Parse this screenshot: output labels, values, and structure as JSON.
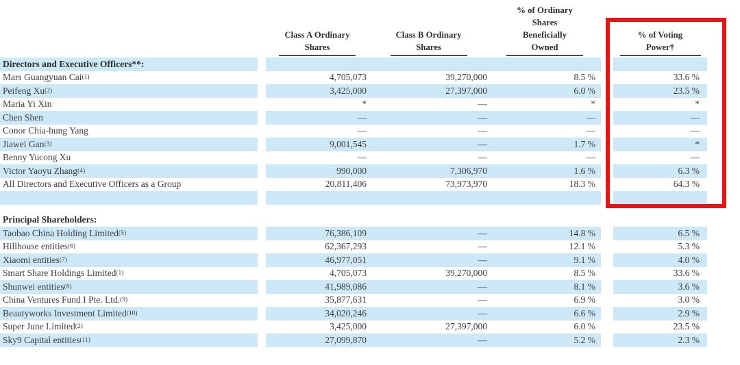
{
  "table": {
    "headers": {
      "class_a": [
        "Class A Ordinary",
        "Shares"
      ],
      "class_b": [
        "Class B Ordinary",
        "Shares"
      ],
      "pct_owned": [
        "% of Ordinary",
        "Shares",
        "Beneficially",
        "Owned"
      ],
      "voting": [
        "% of Voting",
        "Power†"
      ]
    },
    "rows": [
      {
        "type": "section",
        "label": "Directors and Executive Officers**:",
        "sup": "",
        "a": "",
        "b": "",
        "pct": "",
        "vote": "",
        "shaded": true
      },
      {
        "type": "data",
        "label": "Mars Guangyuan Cai",
        "sup": "(1)",
        "a": "4,705,073",
        "b": "39,270,000",
        "pct": "8.5 %",
        "vote": "33.6 %",
        "shaded": false
      },
      {
        "type": "data",
        "label": "Peifeng Xu",
        "sup": "(2)",
        "a": "3,425,000",
        "b": "27,397,000",
        "pct": "6.0 %",
        "vote": "23.5 %",
        "shaded": true
      },
      {
        "type": "data",
        "label": "Maria Yi Xin",
        "sup": "",
        "a": "*",
        "b": "—",
        "pct": "*",
        "vote": "*",
        "shaded": false
      },
      {
        "type": "data",
        "label": "Chen Shen",
        "sup": "",
        "a": "—",
        "b": "—",
        "pct": "—",
        "vote": "—",
        "shaded": true
      },
      {
        "type": "data",
        "label": "Conor Chia-hung Yang",
        "sup": "",
        "a": "—",
        "b": "—",
        "pct": "—",
        "vote": "—",
        "shaded": false
      },
      {
        "type": "data",
        "label": "Jiawei Gan",
        "sup": "(3)",
        "a": "9,001,545",
        "b": "—",
        "pct": "1.7 %",
        "vote": "*",
        "shaded": true
      },
      {
        "type": "data",
        "label": "Benny Yucong Xu",
        "sup": "",
        "a": "—",
        "b": "—",
        "pct": "—",
        "vote": "—",
        "shaded": false
      },
      {
        "type": "data",
        "label": "Victor Yaoyu Zhang",
        "sup": "(4)",
        "a": "990,000",
        "b": "7,306,970",
        "pct": "1.6 %",
        "vote": "6.3 %",
        "shaded": true
      },
      {
        "type": "data",
        "label": "All Directors and Executive Officers as a Group",
        "sup": "",
        "a": "20,811,406",
        "b": "73,973,970",
        "pct": "18.3 %",
        "vote": "64.3 %",
        "shaded": false
      },
      {
        "type": "blank",
        "label": "",
        "sup": "",
        "a": "",
        "b": "",
        "pct": "",
        "vote": "",
        "shaded": true
      },
      {
        "type": "spacer"
      },
      {
        "type": "section",
        "label": "Principal Shareholders:",
        "sup": "",
        "a": "",
        "b": "",
        "pct": "",
        "vote": "",
        "shaded": false
      },
      {
        "type": "data",
        "label": "Taobao China Holding Limited",
        "sup": "(5)",
        "a": "76,386,109",
        "b": "—",
        "pct": "14.8 %",
        "vote": "6.5 %",
        "shaded": true
      },
      {
        "type": "data",
        "label": "Hillhouse entities",
        "sup": "(6)",
        "a": "62,367,293",
        "b": "—",
        "pct": "12.1 %",
        "vote": "5.3 %",
        "shaded": false
      },
      {
        "type": "data",
        "label": "Xiaomi entities",
        "sup": "(7)",
        "a": "46,977,051",
        "b": "—",
        "pct": "9.1 %",
        "vote": "4.0 %",
        "shaded": true
      },
      {
        "type": "data",
        "label": "Smart Share Holdings Limited",
        "sup": "(1)",
        "a": "4,705,073",
        "b": "39,270,000",
        "pct": "8.5 %",
        "vote": "33.6 %",
        "shaded": false
      },
      {
        "type": "data",
        "label": "Shunwei entities",
        "sup": "(8)",
        "a": "41,989,086",
        "b": "—",
        "pct": "8.1 %",
        "vote": "3.6 %",
        "shaded": true
      },
      {
        "type": "data",
        "label": "China Ventures Fund I Pte. Ltd.",
        "sup": "(9)",
        "a": "35,877,631",
        "b": "—",
        "pct": "6.9 %",
        "vote": "3.0 %",
        "shaded": false
      },
      {
        "type": "data",
        "label": "Beautyworks Investment Limited",
        "sup": "(10)",
        "a": "34,020,246",
        "b": "—",
        "pct": "6.6 %",
        "vote": "2.9 %",
        "shaded": true
      },
      {
        "type": "data",
        "label": "Super June Limited",
        "sup": "(2)",
        "a": "3,425,000",
        "b": "27,397,000",
        "pct": "6.0 %",
        "vote": "23.5 %",
        "shaded": false
      },
      {
        "type": "data",
        "label": "Sky9 Capital entities",
        "sup": "(11)",
        "a": "27,099,870",
        "b": "—",
        "pct": "5.2 %",
        "vote": "2.3 %",
        "shaded": true
      }
    ]
  },
  "colors": {
    "band": "#cde9f7",
    "highlight": "#e81414"
  }
}
